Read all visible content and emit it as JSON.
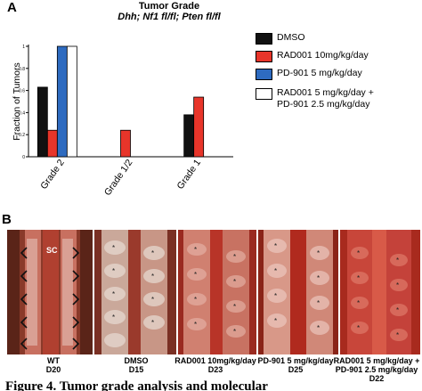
{
  "panels": {
    "a_letter": "A",
    "b_letter": "B"
  },
  "chart_data": {
    "type": "bar",
    "title": "Tumor Grade",
    "subtitle": "Dhh; Nf1 fl/fl; Pten fl/fl",
    "ylabel": "Fraction of Tumors",
    "ylim": [
      0,
      1
    ],
    "yticks": [
      "0",
      "0.2",
      "0.4",
      "0.6",
      "0.8",
      "1"
    ],
    "categories": [
      "Grade 2",
      "Grade 1/2",
      "Grade 1"
    ],
    "series": [
      {
        "name": "DMSO",
        "color": "#111111",
        "values": [
          0.63,
          0,
          0.38
        ]
      },
      {
        "name": "RAD001 10mg/kg/day",
        "color": "#e8352a",
        "values": [
          0.24,
          0.24,
          0.54
        ]
      },
      {
        "name": "PD-901 5 mg/kg/day",
        "color": "#2e6bc0",
        "values": [
          1.0,
          0,
          0
        ]
      },
      {
        "name": "RAD001 5 mg/kg/day +\nPD-901 2.5 mg/kg/day",
        "color": "#ffffff",
        "values": [
          1.0,
          0,
          0
        ]
      }
    ],
    "legend_position": "right"
  },
  "photos": [
    {
      "label": "WT\nD20",
      "annotation": "SC"
    },
    {
      "label": "DMSO\nD15"
    },
    {
      "label": "RAD001 10mg/kg/day\nD23"
    },
    {
      "label": "PD-901 5 mg/kg/day\nD25"
    },
    {
      "label": "RAD001 5 mg/kg/day +\nPD-901 2.5 mg/kg/day\nD22"
    }
  ],
  "caption": "Figure 4. Tumor grade analysis and molecular"
}
